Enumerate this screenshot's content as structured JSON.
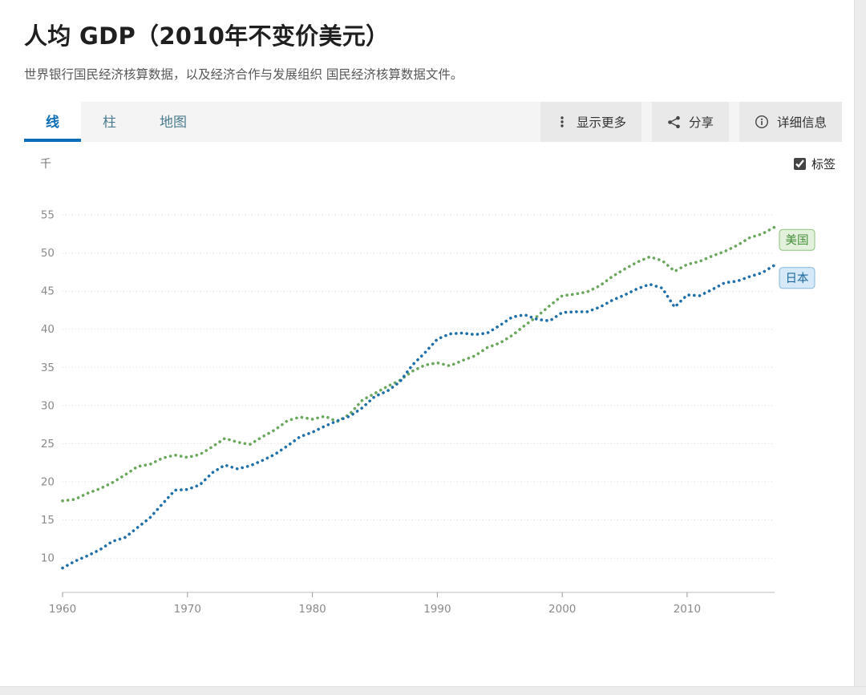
{
  "page": {
    "title": "人均 GDP（2010年不变价美元）",
    "subtitle": "世界银行国民经济核算数据，以及经济合作与发展组织 国民经济核算数据文件。"
  },
  "tabs": [
    {
      "label": "线",
      "active": true
    },
    {
      "label": "柱",
      "active": false
    },
    {
      "label": "地图",
      "active": false
    }
  ],
  "toolbar": {
    "buttons": [
      {
        "label": "显示更多",
        "icon": "kebab-menu-icon"
      },
      {
        "label": "分享",
        "icon": "share-icon"
      },
      {
        "label": "详细信息",
        "icon": "info-icon"
      }
    ]
  },
  "chart": {
    "unit_label": "千",
    "labels_checkbox": {
      "label": "标签",
      "checked": true
    }
  },
  "chart_data": {
    "type": "line",
    "title": "人均 GDP（2010年不变价美元）",
    "ylabel": "千",
    "line_style": "dotted",
    "grid": "horizontal-dotted",
    "legend_position": "end-labels",
    "ylim": [
      5.5,
      57
    ],
    "yticks": [
      10,
      15,
      20,
      25,
      30,
      35,
      40,
      45,
      50,
      55
    ],
    "xticks": [
      1960,
      1970,
      1980,
      1990,
      2000,
      2010
    ],
    "x": [
      1960,
      1961,
      1962,
      1963,
      1964,
      1965,
      1966,
      1967,
      1968,
      1969,
      1970,
      1971,
      1972,
      1973,
      1974,
      1975,
      1976,
      1977,
      1978,
      1979,
      1980,
      1981,
      1982,
      1983,
      1984,
      1985,
      1986,
      1987,
      1988,
      1989,
      1990,
      1991,
      1992,
      1993,
      1994,
      1995,
      1996,
      1997,
      1998,
      1999,
      2000,
      2001,
      2002,
      2003,
      2004,
      2005,
      2006,
      2007,
      2008,
      2009,
      2010,
      2011,
      2012,
      2013,
      2014,
      2015,
      2016,
      2017
    ],
    "series": [
      {
        "name": "美国",
        "color": "#6aa75d",
        "label_bg": "#e3f1dc",
        "label_border": "#8cc17c",
        "label_text": "#47903c",
        "values": [
          17.5,
          17.7,
          18.5,
          19.1,
          19.9,
          20.9,
          22.0,
          22.3,
          23.1,
          23.5,
          23.2,
          23.6,
          24.6,
          25.7,
          25.2,
          24.9,
          25.9,
          26.8,
          28.0,
          28.5,
          28.2,
          28.6,
          27.9,
          28.9,
          30.7,
          31.6,
          32.5,
          33.3,
          34.5,
          35.3,
          35.6,
          35.2,
          35.9,
          36.5,
          37.6,
          38.2,
          39.2,
          40.5,
          41.7,
          43.1,
          44.4,
          44.6,
          44.9,
          45.7,
          46.9,
          47.9,
          48.8,
          49.5,
          49.0,
          47.6,
          48.5,
          48.9,
          49.6,
          50.2,
          51.0,
          52.0,
          52.5,
          53.4
        ]
      },
      {
        "name": "日本",
        "color": "#1f6fa8",
        "label_bg": "#d6e9f8",
        "label_border": "#84b8dd",
        "label_text": "#1a679c",
        "values": [
          8.7,
          9.6,
          10.3,
          11.1,
          12.2,
          12.7,
          14.0,
          15.3,
          17.1,
          18.9,
          19.0,
          19.6,
          21.2,
          22.2,
          21.7,
          22.1,
          22.8,
          23.6,
          24.7,
          25.9,
          26.5,
          27.3,
          28.0,
          28.6,
          29.7,
          31.2,
          31.9,
          33.1,
          35.3,
          36.9,
          38.7,
          39.4,
          39.5,
          39.3,
          39.5,
          40.5,
          41.6,
          41.9,
          41.3,
          41.1,
          42.2,
          42.3,
          42.3,
          42.9,
          43.8,
          44.5,
          45.3,
          45.9,
          45.4,
          42.9,
          44.5,
          44.4,
          45.2,
          46.1,
          46.3,
          46.9,
          47.4,
          48.4
        ]
      }
    ]
  },
  "colors": {
    "accent_blue": "#0b6db5",
    "tab_inactive": "#4a7b8f",
    "toolbar_bg": "#f4f4f4",
    "button_bg": "#e9e9e9",
    "gridline": "#d8d8d8",
    "axis_text": "#8a8a8a"
  }
}
